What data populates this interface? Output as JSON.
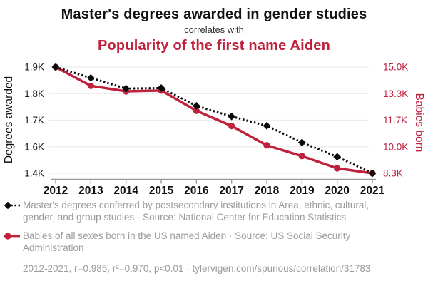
{
  "header": {
    "title": "Master's degrees awarded in gender studies",
    "connector": "correlates with",
    "subtitle": "Popularity of the first name Aiden"
  },
  "colors": {
    "accent_red": "#c0223e",
    "series_black": "#0a0a0a",
    "legend_text": "#9b9b9b",
    "grid": "#ececec",
    "axis": "#999999",
    "tick_text": "#1a1a1a"
  },
  "chart_data": {
    "type": "line",
    "x": [
      "2012",
      "2013",
      "2014",
      "2015",
      "2016",
      "2017",
      "2018",
      "2019",
      "2020",
      "2021"
    ],
    "series": [
      {
        "name": "Master's degrees conferred in Area, ethnic, cultural, gender, and group studies",
        "axis": "left",
        "marker": "diamond",
        "line_style": "dotted",
        "color_key": "series_black",
        "values": [
          1900,
          1859,
          1819,
          1821,
          1754,
          1714,
          1679,
          1616,
          1524,
          1400
        ]
      },
      {
        "name": "Babies of all sexes born in the US named Aiden",
        "axis": "right",
        "marker": "circle",
        "line_style": "solid",
        "color_key": "accent_red",
        "values": [
          15000,
          13800,
          13450,
          13500,
          12270,
          11330,
          10090,
          9400,
          8620,
          8300
        ]
      }
    ],
    "left_axis": {
      "label": "Degrees awarded",
      "tick_labels": [
        "1.9K",
        "1.8K",
        "1.7K",
        "1.6K",
        "1.4K"
      ],
      "tick_values": [
        1900,
        1800,
        1700,
        1600,
        1400
      ]
    },
    "right_axis": {
      "label": "Babies born",
      "tick_labels": [
        "15.0K",
        "13.3K",
        "11.7K",
        "10.0K",
        "8.3K"
      ],
      "tick_values": [
        15000,
        13300,
        11700,
        10000,
        8300
      ]
    },
    "grid": true,
    "legend_position": "bottom"
  },
  "legend": {
    "entries": [
      {
        "text": "Master's degrees conferred by postsecondary institutions in Area, ethnic, cultural, gender, and group studies · Source: National Center for Education Statistics"
      },
      {
        "text": "Babies of all sexes born in the US named Aiden · Source: US Social Security Administration"
      }
    ]
  },
  "footer": {
    "text": "2012-2021, r=0.985, r²=0.970, p<0.01 · tylervigen.com/spurious/correlation/31783"
  }
}
